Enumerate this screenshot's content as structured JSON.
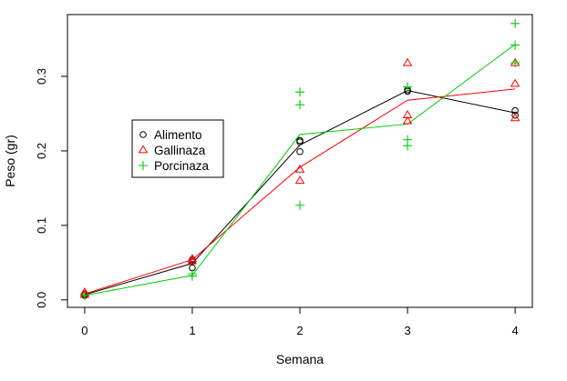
{
  "chart_data": {
    "type": "scatter",
    "title": "",
    "xlabel": "Semana",
    "ylabel": "Peso (gr)",
    "xlim": [
      -0.16,
      4.16
    ],
    "ylim": [
      -0.01,
      0.383
    ],
    "xticks": [
      0,
      1,
      2,
      3,
      4
    ],
    "xtick_labels": [
      "0",
      "1",
      "2",
      "3",
      "4"
    ],
    "yticks": [
      0.0,
      0.1,
      0.2,
      0.3
    ],
    "ytick_labels": [
      "0.0",
      "0.1",
      "0.2",
      "0.3"
    ],
    "grid": false,
    "legend_position": "middle-left",
    "series": [
      {
        "name": "Alimento",
        "marker": "circle",
        "color": "#000000",
        "points": [
          [
            0,
            0.006
          ],
          [
            0,
            0.008
          ],
          [
            1,
            0.043
          ],
          [
            1,
            0.052
          ],
          [
            1,
            0.054
          ],
          [
            2,
            0.199
          ],
          [
            2,
            0.212
          ],
          [
            2,
            0.214
          ],
          [
            3,
            0.28
          ],
          [
            3,
            0.282
          ],
          [
            4,
            0.248
          ],
          [
            4,
            0.254
          ]
        ],
        "line_x": [
          0,
          1,
          2,
          3,
          4
        ],
        "line_y": [
          0.007,
          0.049,
          0.208,
          0.281,
          0.251
        ]
      },
      {
        "name": "Gallinaza",
        "marker": "triangle",
        "color": "#ff0000",
        "points": [
          [
            0,
            0.007
          ],
          [
            0,
            0.01
          ],
          [
            1,
            0.052
          ],
          [
            1,
            0.055
          ],
          [
            2,
            0.16
          ],
          [
            2,
            0.175
          ],
          [
            3,
            0.24
          ],
          [
            3,
            0.248
          ],
          [
            3,
            0.318
          ],
          [
            4,
            0.244
          ],
          [
            4,
            0.29
          ],
          [
            4,
            0.318
          ]
        ],
        "line_x": [
          0,
          1,
          2,
          3,
          4
        ],
        "line_y": [
          0.008,
          0.054,
          0.178,
          0.268,
          0.283
        ]
      },
      {
        "name": "Porcinaza",
        "marker": "plus",
        "color": "#00cc00",
        "points": [
          [
            0,
            0.006
          ],
          [
            1,
            0.032
          ],
          [
            1,
            0.035
          ],
          [
            2,
            0.127
          ],
          [
            2,
            0.262
          ],
          [
            2,
            0.279
          ],
          [
            3,
            0.207
          ],
          [
            3,
            0.215
          ],
          [
            3,
            0.286
          ],
          [
            4,
            0.318
          ],
          [
            4,
            0.342
          ],
          [
            4,
            0.371
          ]
        ],
        "line_x": [
          0,
          1,
          2,
          3,
          4
        ],
        "line_y": [
          0.006,
          0.033,
          0.222,
          0.236,
          0.343
        ]
      }
    ]
  }
}
